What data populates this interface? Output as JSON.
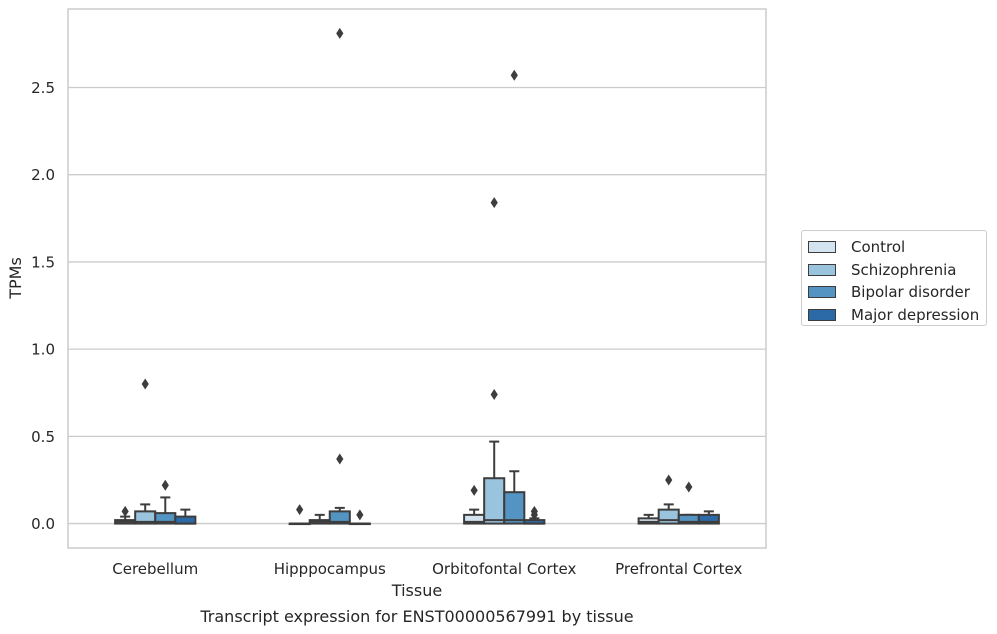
{
  "chart_data": {
    "type": "box",
    "title": "Transcript expression for ENST00000567991 by tissue",
    "xlabel": "Tissue",
    "ylabel": "TPMs",
    "ylim": [
      -0.14,
      2.95
    ],
    "yticks": [
      0.0,
      0.5,
      1.0,
      1.5,
      2.0,
      2.5
    ],
    "yticklabels": [
      "0.0",
      "0.5",
      "1.0",
      "1.5",
      "2.0",
      "2.5"
    ],
    "grid": "horizontal",
    "legend_position": "right",
    "categories": [
      "Cerebellum",
      "Hipppocampus",
      "Orbitofontal Cortex",
      "Prefrontal Cortex"
    ],
    "series": [
      {
        "name": "Control",
        "color": "#d4e3f0",
        "boxes": [
          {
            "whisker_low": 0.0,
            "q1": 0.0,
            "median": 0.01,
            "q3": 0.02,
            "whisker_high": 0.04,
            "outliers": [
              0.07
            ]
          },
          {
            "whisker_low": 0.0,
            "q1": 0.0,
            "median": 0.0,
            "q3": 0.0,
            "whisker_high": 0.0,
            "outliers": [
              0.08
            ]
          },
          {
            "whisker_low": 0.0,
            "q1": 0.0,
            "median": 0.01,
            "q3": 0.05,
            "whisker_high": 0.08,
            "outliers": [
              0.19
            ]
          },
          {
            "whisker_low": 0.0,
            "q1": 0.0,
            "median": 0.01,
            "q3": 0.03,
            "whisker_high": 0.05,
            "outliers": []
          }
        ]
      },
      {
        "name": "Schizophrenia",
        "color": "#9ac3dd",
        "boxes": [
          {
            "whisker_low": 0.0,
            "q1": 0.0,
            "median": 0.01,
            "q3": 0.07,
            "whisker_high": 0.11,
            "outliers": [
              0.8
            ]
          },
          {
            "whisker_low": 0.0,
            "q1": 0.0,
            "median": 0.01,
            "q3": 0.02,
            "whisker_high": 0.05,
            "outliers": []
          },
          {
            "whisker_low": 0.0,
            "q1": 0.0,
            "median": 0.02,
            "q3": 0.26,
            "whisker_high": 0.47,
            "outliers": [
              0.74,
              1.84
            ]
          },
          {
            "whisker_low": 0.0,
            "q1": 0.0,
            "median": 0.02,
            "q3": 0.08,
            "whisker_high": 0.11,
            "outliers": [
              0.25
            ]
          }
        ]
      },
      {
        "name": "Bipolar disorder",
        "color": "#5394c3",
        "boxes": [
          {
            "whisker_low": 0.0,
            "q1": 0.0,
            "median": 0.01,
            "q3": 0.06,
            "whisker_high": 0.15,
            "outliers": [
              0.22
            ]
          },
          {
            "whisker_low": 0.0,
            "q1": 0.0,
            "median": 0.01,
            "q3": 0.07,
            "whisker_high": 0.09,
            "outliers": [
              0.37,
              2.81
            ]
          },
          {
            "whisker_low": 0.0,
            "q1": 0.0,
            "median": 0.02,
            "q3": 0.18,
            "whisker_high": 0.3,
            "outliers": [
              2.57
            ]
          },
          {
            "whisker_low": 0.0,
            "q1": 0.0,
            "median": 0.01,
            "q3": 0.05,
            "whisker_high": 0.05,
            "outliers": [
              0.21
            ]
          }
        ]
      },
      {
        "name": "Major depression",
        "color": "#2b6aa6",
        "boxes": [
          {
            "whisker_low": 0.0,
            "q1": 0.0,
            "median": 0.0,
            "q3": 0.04,
            "whisker_high": 0.08,
            "outliers": []
          },
          {
            "whisker_low": 0.0,
            "q1": 0.0,
            "median": 0.0,
            "q3": 0.0,
            "whisker_high": 0.0,
            "outliers": [
              0.05
            ]
          },
          {
            "whisker_low": 0.0,
            "q1": 0.0,
            "median": 0.0,
            "q3": 0.02,
            "whisker_high": 0.03,
            "outliers": [
              0.05,
              0.07
            ]
          },
          {
            "whisker_low": 0.0,
            "q1": 0.0,
            "median": 0.01,
            "q3": 0.05,
            "whisker_high": 0.07,
            "outliers": []
          }
        ]
      }
    ]
  }
}
